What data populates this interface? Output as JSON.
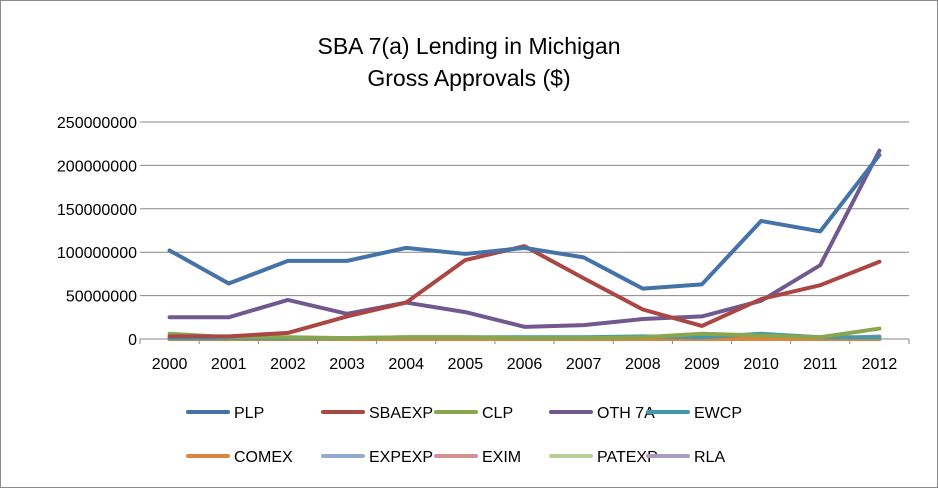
{
  "chart_data": {
    "type": "line",
    "title_lines": [
      "SBA 7(a) Lending in Michigan",
      "Gross Approvals ($)"
    ],
    "x": [
      "2000",
      "2001",
      "2002",
      "2003",
      "2004",
      "2005",
      "2006",
      "2007",
      "2008",
      "2009",
      "2010",
      "2011",
      "2012"
    ],
    "ylim": [
      0,
      250000000
    ],
    "yticks": [
      "0",
      "50000000",
      "100000000",
      "150000000",
      "200000000",
      "250000000"
    ],
    "ytick_values": [
      0,
      50000000,
      100000000,
      150000000,
      200000000,
      250000000
    ],
    "grid": true,
    "legend_position": "bottom",
    "series": [
      {
        "name": "PLP",
        "color": "#4573a7",
        "values": [
          102000000,
          64000000,
          90000000,
          90000000,
          105000000,
          98000000,
          105000000,
          94000000,
          58000000,
          63000000,
          136000000,
          124000000,
          212000000
        ]
      },
      {
        "name": "SBAEXP",
        "color": "#aa4643",
        "values": [
          3000000,
          3000000,
          7000000,
          26000000,
          42000000,
          91000000,
          107000000,
          70000000,
          34000000,
          15000000,
          46000000,
          62000000,
          89000000
        ]
      },
      {
        "name": "CLP",
        "color": "#89a54e",
        "values": [
          6000000,
          2000000,
          2000000,
          1000000,
          2000000,
          2000000,
          1000000,
          1000000,
          2000000,
          6000000,
          4000000,
          2000000,
          12000000
        ]
      },
      {
        "name": "OTH 7A",
        "color": "#71588f",
        "values": [
          25000000,
          25000000,
          45000000,
          29000000,
          42000000,
          31000000,
          14000000,
          16000000,
          23000000,
          26000000,
          44000000,
          85000000,
          217000000
        ]
      },
      {
        "name": "EWCP",
        "color": "#4198af",
        "values": [
          1000000,
          1000000,
          1000000,
          1000000,
          2000000,
          2000000,
          2000000,
          2000000,
          3000000,
          2000000,
          6000000,
          2000000,
          2000000
        ]
      },
      {
        "name": "COMEX",
        "color": "#db843d",
        "values": [
          0,
          0,
          0,
          0,
          0,
          0,
          0,
          0,
          0,
          0,
          0,
          0,
          0
        ]
      },
      {
        "name": "EXPEXP",
        "color": "#93a9cf",
        "values": [
          0,
          0,
          0,
          0,
          0,
          0,
          0,
          0,
          0,
          0,
          0,
          0,
          0
        ]
      },
      {
        "name": "EXIM",
        "color": "#d19392",
        "values": [
          0,
          0,
          0,
          0,
          0,
          0,
          0,
          0,
          0,
          0,
          0,
          0,
          0
        ]
      },
      {
        "name": "PATEXP",
        "color": "#b9cd96",
        "values": [
          0,
          0,
          0,
          0,
          0,
          0,
          0,
          0,
          0,
          1000000,
          1000000,
          1000000,
          1000000
        ]
      },
      {
        "name": "RLA",
        "color": "#a99bbd",
        "values": [
          0,
          0,
          0,
          0,
          0,
          0,
          0,
          0,
          0,
          0,
          0,
          0,
          3000000
        ]
      }
    ]
  }
}
